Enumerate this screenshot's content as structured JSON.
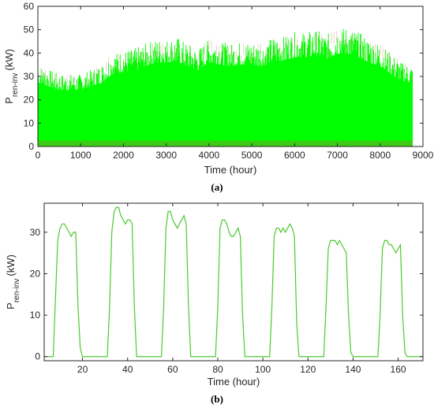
{
  "chart_data": [
    {
      "type": "area",
      "panel_label": "(a)",
      "xlabel": "Time (hour)",
      "ylabel": "P",
      "ylabel_sub": "ren-inv",
      "ylabel_unit": "(kW)",
      "xlim": [
        0,
        9000
      ],
      "ylim": [
        0,
        60
      ],
      "xticks": [
        0,
        1000,
        2000,
        3000,
        4000,
        5000,
        6000,
        7000,
        8000,
        9000
      ],
      "yticks": [
        0,
        10,
        20,
        30,
        40,
        50,
        60
      ],
      "grid": false,
      "series_color": "#00ff00",
      "overlay_color": "#b06a3c",
      "daily_peak_envelope": {
        "x": [
          0,
          250,
          500,
          750,
          1000,
          1250,
          1500,
          1750,
          2000,
          2250,
          2500,
          2750,
          3000,
          3250,
          3500,
          3750,
          4000,
          4250,
          4500,
          4750,
          5000,
          5250,
          5500,
          5750,
          6000,
          6250,
          6500,
          6750,
          7000,
          7250,
          7500,
          7750,
          8000,
          8250,
          8500,
          8760
        ],
        "y": [
          35,
          33,
          31,
          31,
          31,
          33,
          35,
          40,
          41,
          42,
          44,
          46,
          46,
          47,
          44,
          42,
          46,
          45,
          44,
          45,
          45,
          44,
          47,
          47,
          49,
          49,
          50,
          48,
          51,
          51,
          49,
          46,
          44,
          40,
          36,
          35
        ]
      }
    },
    {
      "type": "line",
      "panel_label": "(b)",
      "xlabel": "Time (hour)",
      "ylabel": "P",
      "ylabel_sub": "ren-inv",
      "ylabel_unit": "(kW)",
      "xlim": [
        3,
        171
      ],
      "ylim": [
        -1,
        37
      ],
      "xticks": [
        20,
        40,
        60,
        80,
        100,
        120,
        140,
        160
      ],
      "yticks": [
        0,
        10,
        20,
        30
      ],
      "grid": false,
      "series_color": "#4cc830",
      "x": [
        3,
        7,
        8,
        9,
        10,
        11,
        12,
        13,
        14,
        15,
        16,
        17,
        18,
        19,
        20,
        31,
        32,
        33,
        34,
        35,
        36,
        37,
        38,
        39,
        40,
        41,
        42,
        43,
        44,
        55,
        56,
        57,
        58,
        59,
        60,
        61,
        62,
        63,
        64,
        65,
        66,
        67,
        68,
        79,
        80,
        81,
        82,
        83,
        84,
        85,
        86,
        87,
        88,
        89,
        90,
        91,
        92,
        103,
        104,
        105,
        106,
        107,
        108,
        109,
        110,
        111,
        112,
        113,
        114,
        115,
        116,
        127,
        128,
        129,
        130,
        131,
        132,
        133,
        134,
        135,
        136,
        137,
        138,
        139,
        140,
        151,
        152,
        153,
        154,
        155,
        156,
        157,
        158,
        159,
        160,
        161,
        162,
        163,
        164,
        171
      ],
      "y": [
        0,
        0,
        14,
        28,
        31,
        32,
        32,
        31,
        30,
        29,
        30,
        30,
        12,
        2,
        0,
        0,
        12,
        30,
        35,
        36,
        36,
        34,
        33,
        32,
        33,
        33,
        32,
        12,
        0,
        0,
        12,
        31,
        35,
        35,
        33,
        32,
        31,
        32,
        33,
        34,
        32,
        12,
        0,
        0,
        12,
        31,
        33,
        33,
        32,
        30,
        29,
        29,
        30,
        31,
        29,
        10,
        0,
        0,
        12,
        29,
        31,
        31,
        30,
        31,
        30,
        31,
        32,
        31,
        29,
        8,
        0,
        0,
        12,
        26,
        28,
        28,
        28,
        27,
        28,
        27,
        26,
        25,
        10,
        1,
        0,
        0,
        10,
        26,
        28,
        28,
        27,
        27,
        26,
        25,
        26,
        27,
        10,
        1,
        0,
        0
      ]
    }
  ]
}
